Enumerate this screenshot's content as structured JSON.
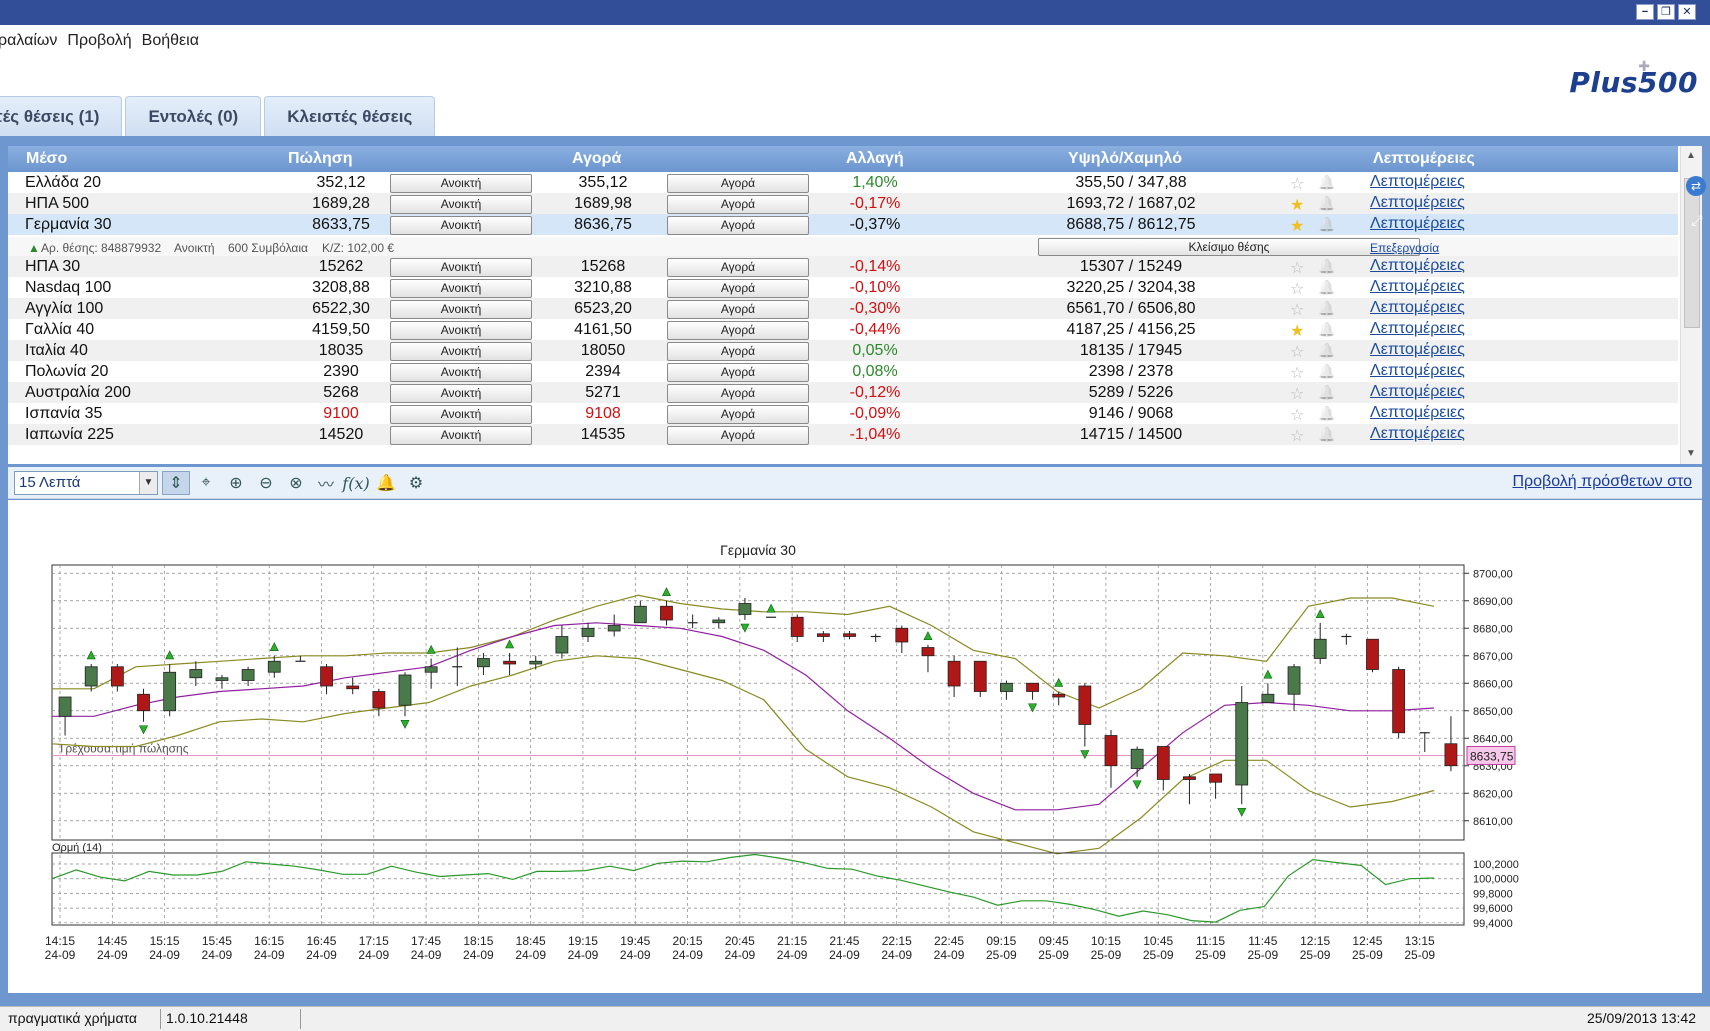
{
  "menu": [
    "ραλαίων",
    "Προβολή",
    "Βοήθεια"
  ],
  "window_controls": [
    "−",
    "❐",
    "✕"
  ],
  "logo": "Plus500",
  "tabs": [
    "τές θέσεις (1)",
    "Εντολές (0)",
    "Κλειστές θέσεις"
  ],
  "table": {
    "headers": {
      "instrument": "Μέσο",
      "sell": "Πώληση",
      "buy": "Αγορά",
      "change": "Αλλαγή",
      "highlow": "Υψηλό/Χαμηλό",
      "details": "Λεπτομέρειες"
    },
    "sell_button": "Ανοικτή",
    "buy_button": "Αγορά",
    "details_link": "Λεπτομέρειες",
    "rows": [
      {
        "name": "Ελλάδα 20",
        "sell": "352,12",
        "buy": "355,12",
        "change": "1,40%",
        "dir": "pos",
        "hl": "355,50 / 347,88",
        "fav": false
      },
      {
        "name": "ΗΠΑ 500",
        "sell": "1689,28",
        "buy": "1689,98",
        "change": "-0,17%",
        "dir": "neg",
        "hl": "1693,72 / 1687,02",
        "fav": true
      },
      {
        "name": "Γερμανία 30",
        "sell": "8633,75",
        "buy": "8636,75",
        "change": "-0,37%",
        "dir": "neu",
        "hl": "8688,75 / 8612,75",
        "fav": true
      },
      {
        "name": "ΗΠΑ 30",
        "sell": "15262",
        "buy": "15268",
        "change": "-0,14%",
        "dir": "neg",
        "hl": "15307 / 15249",
        "fav": false
      },
      {
        "name": "Nasdaq 100",
        "sell": "3208,88",
        "buy": "3210,88",
        "change": "-0,10%",
        "dir": "neg",
        "hl": "3220,25 / 3204,38",
        "fav": false
      },
      {
        "name": "Αγγλία 100",
        "sell": "6522,30",
        "buy": "6523,20",
        "change": "-0,30%",
        "dir": "neg",
        "hl": "6561,70 / 6506,80",
        "fav": false
      },
      {
        "name": "Γαλλία 40",
        "sell": "4159,50",
        "buy": "4161,50",
        "change": "-0,44%",
        "dir": "neg",
        "hl": "4187,25 / 4156,25",
        "fav": true
      },
      {
        "name": "Ιταλία 40",
        "sell": "18035",
        "buy": "18050",
        "change": "0,05%",
        "dir": "pos",
        "hl": "18135 / 17945",
        "fav": false
      },
      {
        "name": "Πολωνία 20",
        "sell": "2390",
        "buy": "2394",
        "change": "0,08%",
        "dir": "pos",
        "hl": "2398 / 2378",
        "fav": false
      },
      {
        "name": "Αυστραλία 200",
        "sell": "5268",
        "buy": "5271",
        "change": "-0,12%",
        "dir": "neg",
        "hl": "5289 / 5226",
        "fav": false
      },
      {
        "name": "Ισπανία 35",
        "sell": "9100",
        "buy": "9108",
        "change": "-0,09%",
        "dir": "neg",
        "hl": "9146 / 9068",
        "fav": false,
        "red_prices": true
      },
      {
        "name": "Ιαπωνία 225",
        "sell": "14520",
        "buy": "14535",
        "change": "-1,04%",
        "dir": "neg",
        "hl": "14715 / 14500",
        "fav": false
      }
    ],
    "position": {
      "id": "Αρ. θέσης: 848879932",
      "status": "Ανοικτή",
      "contracts": "600 Συμβόλαια",
      "pnl": "Κ/Ζ: 102,00 €",
      "close": "Κλείσιμο θέσης",
      "edit": "Επεξεργασία"
    }
  },
  "toolbar": {
    "timeframe": "15 Λεπτά",
    "more_link": "Προβολή πρόσθετων στο"
  },
  "chart_data": {
    "type": "candlestick",
    "title": "Γερμανία 30",
    "current_price_label": "Τρέχουσα τιμή πώλησης",
    "current_price": "8633,75",
    "current_value": 8633.75,
    "ylim": [
      8603,
      8703
    ],
    "yticks": [
      "8700,00",
      "8690,00",
      "8680,00",
      "8670,00",
      "8660,00",
      "8650,00",
      "8640,00",
      "8630,00",
      "8620,00",
      "8610,00"
    ],
    "x_times": [
      "14:15",
      "14:45",
      "15:15",
      "15:45",
      "16:15",
      "16:45",
      "17:15",
      "17:45",
      "18:15",
      "18:45",
      "19:15",
      "19:45",
      "20:15",
      "20:45",
      "21:15",
      "21:45",
      "22:15",
      "22:45",
      "09:15",
      "09:45",
      "10:15",
      "10:45",
      "11:15",
      "11:45",
      "12:15",
      "12:45",
      "13:15"
    ],
    "x_dates": [
      "24-09",
      "24-09",
      "24-09",
      "24-09",
      "24-09",
      "24-09",
      "24-09",
      "24-09",
      "24-09",
      "24-09",
      "24-09",
      "24-09",
      "24-09",
      "24-09",
      "24-09",
      "24-09",
      "24-09",
      "24-09",
      "25-09",
      "25-09",
      "25-09",
      "25-09",
      "25-09",
      "25-09",
      "25-09",
      "25-09",
      "25-09"
    ],
    "candles": [
      [
        8648,
        8655,
        8655,
        8641
      ],
      [
        8659,
        8666,
        8667,
        8657
      ],
      [
        8666,
        8659,
        8667,
        8657
      ],
      [
        8656,
        8650,
        8658,
        8646
      ],
      [
        8650,
        8664,
        8667,
        8648
      ],
      [
        8662,
        8665,
        8668,
        8659
      ],
      [
        8661,
        8662,
        8663,
        8658
      ],
      [
        8661,
        8665,
        8666,
        8659
      ],
      [
        8664,
        8668,
        8670,
        8662
      ],
      [
        8668,
        8668,
        8670,
        8668
      ],
      [
        8666,
        8659,
        8667,
        8656
      ],
      [
        8659,
        8658,
        8662,
        8656
      ],
      [
        8657,
        8651,
        8658,
        8648
      ],
      [
        8652,
        8663,
        8664,
        8648
      ],
      [
        8664,
        8666,
        8669,
        8658
      ],
      [
        8666,
        8666,
        8673,
        8659
      ],
      [
        8666,
        8669,
        8671,
        8663
      ],
      [
        8668,
        8667,
        8671,
        8663
      ],
      [
        8667,
        8668,
        8670,
        8665
      ],
      [
        8671,
        8677,
        8681,
        8669
      ],
      [
        8677,
        8680,
        8682,
        8675
      ],
      [
        8679,
        8681,
        8685,
        8677
      ],
      [
        8682,
        8688,
        8690,
        8682
      ],
      [
        8688,
        8683,
        8690,
        8681
      ],
      [
        8682,
        8682,
        8685,
        8680
      ],
      [
        8682,
        8683,
        8684,
        8680
      ],
      [
        8685,
        8689,
        8691,
        8683
      ],
      [
        8684,
        8684,
        8684,
        8684
      ],
      [
        8684,
        8677,
        8685,
        8675
      ],
      [
        8678,
        8677,
        8679,
        8675
      ],
      [
        8678,
        8677,
        8679,
        8676
      ],
      [
        8677,
        8677,
        8678,
        8675
      ],
      [
        8680,
        8675,
        8681,
        8671
      ],
      [
        8673,
        8670,
        8674,
        8664
      ],
      [
        8668,
        8659,
        8670,
        8655
      ],
      [
        8668,
        8657,
        8668,
        8655
      ],
      [
        8657,
        8660,
        8661,
        8654
      ],
      [
        8660,
        8657,
        8660,
        8654
      ],
      [
        8656,
        8655,
        8657,
        8652
      ],
      [
        8659,
        8645,
        8660,
        8637
      ],
      [
        8641,
        8630,
        8643,
        8622
      ],
      [
        8629,
        8636,
        8637,
        8626
      ],
      [
        8637,
        8625,
        8637,
        8621
      ],
      [
        8626,
        8625,
        8627,
        8616
      ],
      [
        8627,
        8624,
        8627,
        8618
      ],
      [
        8623,
        8653,
        8659,
        8616
      ],
      [
        8653,
        8656,
        8660,
        8653
      ],
      [
        8656,
        8666,
        8667,
        8650
      ],
      [
        8669,
        8676,
        8682,
        8667
      ],
      [
        8677,
        8677,
        8678,
        8674
      ],
      [
        8676,
        8665,
        8676,
        8664
      ],
      [
        8665,
        8642,
        8666,
        8640
      ],
      [
        8642,
        8642,
        8642,
        8635
      ],
      [
        8638,
        8630,
        8648,
        8628
      ]
    ],
    "up_arrows": [
      1,
      4,
      8,
      14,
      17,
      23,
      27,
      33,
      38,
      46,
      48
    ],
    "down_arrows": [
      3,
      13,
      26,
      37,
      39,
      41,
      45
    ],
    "bollinger_upper": [
      8658,
      8658,
      8666,
      8667,
      8668,
      8669,
      8670,
      8670,
      8671,
      8671,
      8673,
      8677,
      8683,
      8688,
      8692,
      8689,
      8687,
      8686,
      8686,
      8685,
      8688,
      8681,
      8672,
      8669,
      8657,
      8651,
      8658,
      8671,
      8670,
      8668,
      8688,
      8691,
      8691,
      8688
    ],
    "bollinger_mid": [
      8648,
      8648,
      8652,
      8655,
      8657,
      8658,
      8659,
      8662,
      8664,
      8666,
      8672,
      8677,
      8681,
      8682,
      8681,
      8680,
      8677,
      8672,
      8663,
      8650,
      8640,
      8629,
      8620,
      8614,
      8614,
      8616,
      8629,
      8642,
      8652,
      8653,
      8652,
      8650,
      8650,
      8651
    ],
    "bollinger_lower": [
      8638,
      8637,
      8637,
      8641,
      8646,
      8647,
      8646,
      8649,
      8651,
      8653,
      8659,
      8663,
      8668,
      8670,
      8669,
      8665,
      8661,
      8654,
      8636,
      8626,
      8622,
      8615,
      8606,
      8602,
      8598,
      8600,
      8611,
      8625,
      8632,
      8632,
      8621,
      8615,
      8617,
      8621
    ],
    "indicator": {
      "label": "Ορμή (14)",
      "yticks": [
        "100,2000",
        "100,0000",
        "99,8000",
        "99,6000",
        "99,4000"
      ],
      "ylim": [
        99.37,
        100.35
      ],
      "values": [
        100.0,
        100.12,
        100.02,
        99.97,
        100.1,
        100.05,
        100.05,
        100.1,
        100.23,
        100.2,
        100.17,
        100.12,
        100.06,
        100.06,
        100.17,
        100.09,
        100.03,
        100.05,
        100.07,
        99.99,
        100.1,
        100.1,
        100.11,
        100.17,
        100.11,
        100.21,
        100.24,
        100.23,
        100.29,
        100.33,
        100.28,
        100.22,
        100.14,
        100.13,
        100.04,
        99.98,
        99.9,
        99.82,
        99.75,
        99.64,
        99.7,
        99.7,
        99.65,
        99.58,
        99.49,
        99.56,
        99.51,
        99.43,
        99.41,
        99.57,
        99.62,
        100.04,
        100.26,
        100.22,
        100.18,
        99.92,
        100.0,
        100.01
      ]
    }
  },
  "status": {
    "account": "πραγματικά χρήματα",
    "version": "1.0.10.21448",
    "datetime": "25/09/2013 13:42"
  },
  "colors": {
    "titlebar": "#324e98",
    "frame": "#6e96cf",
    "up": "#4a7a4a",
    "down": "#b01818",
    "band": "#8a8a20",
    "mid": "#9020a0",
    "momentum": "#2a9a2a"
  }
}
